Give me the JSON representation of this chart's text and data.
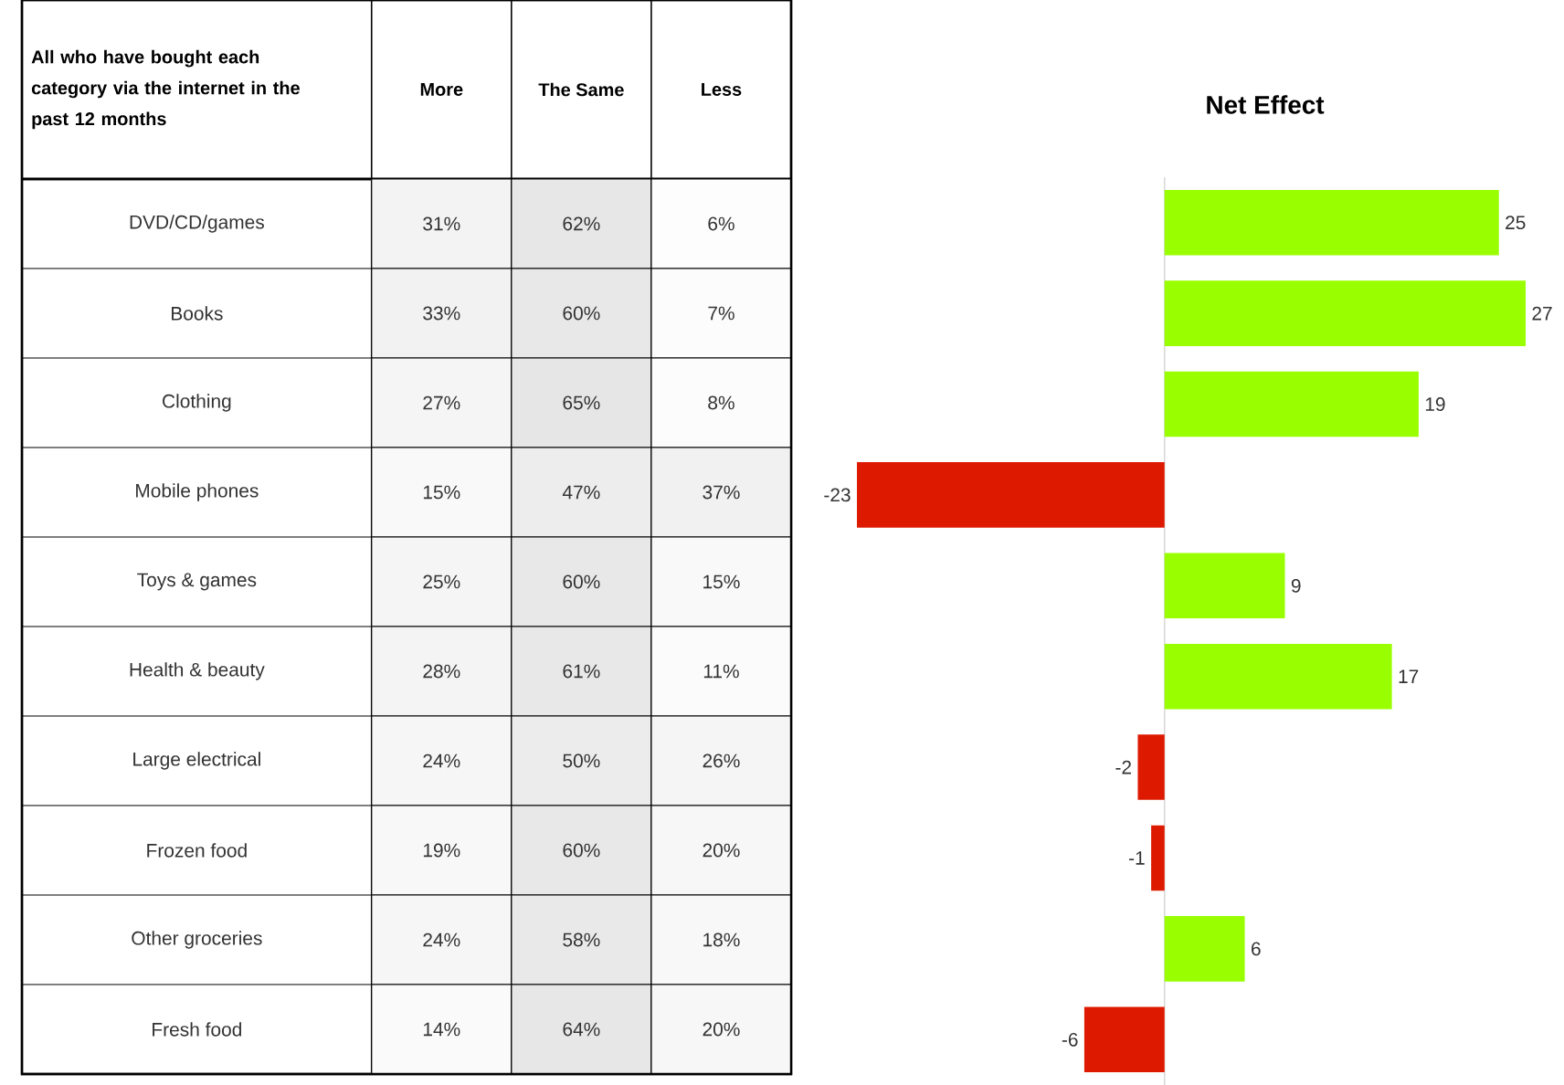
{
  "chart_data": [
    {
      "type": "heatmap",
      "title": "All who have bought each category via the internet in the past 12 months",
      "categories": [
        "More",
        "The Same",
        "Less"
      ],
      "y_categories": [
        "DVD/CD/games",
        "Books",
        "Clothing",
        "Mobile phones",
        "Toys & games",
        "Health & beauty",
        "Large electrical",
        "Frozen food",
        "Other groceries",
        "Fresh food"
      ],
      "cells": [
        [
          31,
          62,
          6
        ],
        [
          33,
          60,
          7
        ],
        [
          27,
          65,
          8
        ],
        [
          15,
          47,
          37
        ],
        [
          25,
          60,
          15
        ],
        [
          28,
          61,
          11
        ],
        [
          24,
          50,
          26
        ],
        [
          19,
          60,
          20
        ],
        [
          24,
          58,
          18
        ],
        [
          14,
          64,
          20
        ]
      ],
      "cell_labels": [
        [
          "31%",
          "62%",
          "6%"
        ],
        [
          "33%",
          "60%",
          "7%"
        ],
        [
          "27%",
          "65%",
          "8%"
        ],
        [
          "15%",
          "47%",
          "37%"
        ],
        [
          "25%",
          "60%",
          "15%"
        ],
        [
          "28%",
          "61%",
          "11%"
        ],
        [
          "24%",
          "50%",
          "26%"
        ],
        [
          "19%",
          "60%",
          "20%"
        ],
        [
          "24%",
          "58%",
          "18%"
        ],
        [
          "14%",
          "64%",
          "20%"
        ]
      ]
    },
    {
      "type": "bar",
      "orientation": "horizontal",
      "title": "Net Effect",
      "categories": [
        null,
        null,
        null,
        null,
        null,
        null,
        null,
        null,
        null,
        null
      ],
      "values": [
        25,
        27,
        19,
        -23,
        9,
        17,
        -2,
        -1,
        6,
        -6
      ],
      "colors": [
        "#99ff00",
        "#99ff00",
        "#99ff00",
        "#dd1a00",
        "#99ff00",
        "#99ff00",
        "#dd1a00",
        "#dd1a00",
        "#99ff00",
        "#dd1a00"
      ],
      "data_labels": true
    }
  ]
}
